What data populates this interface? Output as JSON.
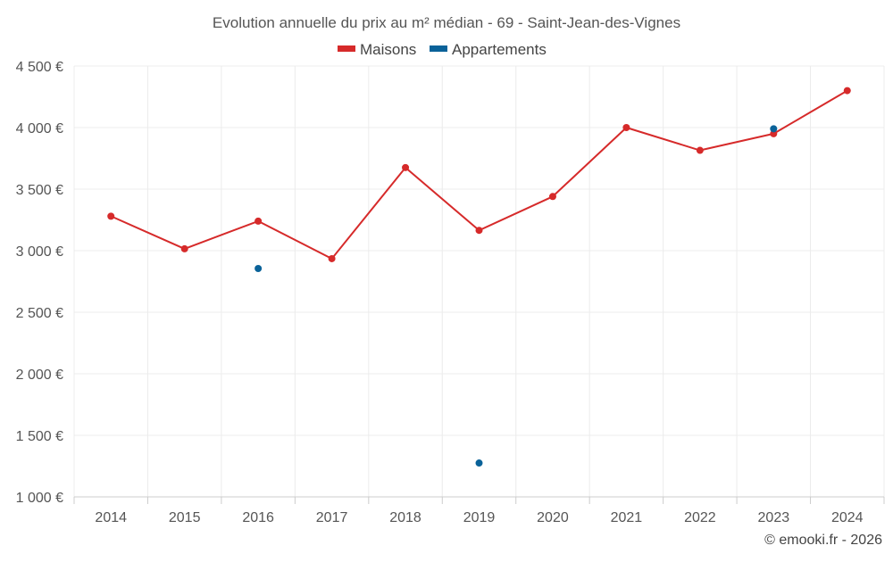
{
  "chart_data": {
    "type": "line",
    "title": "Evolution annuelle du prix au m² médian - 69 - Saint-Jean-des-Vignes",
    "categories": [
      "2014",
      "2015",
      "2016",
      "2017",
      "2018",
      "2019",
      "2020",
      "2021",
      "2022",
      "2023",
      "2024"
    ],
    "series": [
      {
        "name": "Maisons",
        "color": "#d62a2a",
        "mode": "line+markers",
        "values": [
          3280,
          3015,
          3240,
          2935,
          3675,
          3165,
          3440,
          4000,
          3815,
          3950,
          4300
        ]
      },
      {
        "name": "Appartements",
        "color": "#0a6299",
        "mode": "markers",
        "values": [
          null,
          null,
          2855,
          null,
          null,
          1275,
          null,
          null,
          null,
          3990,
          null
        ]
      }
    ],
    "ylim": [
      1000,
      4500
    ],
    "yticks": [
      1000,
      1500,
      2000,
      2500,
      3000,
      3500,
      4000,
      4500
    ],
    "ytick_labels": [
      "1 000 €",
      "1 500 €",
      "2 000 €",
      "2 500 €",
      "3 000 €",
      "3 500 €",
      "4 000 €",
      "4 500 €"
    ],
    "xlabel": "",
    "ylabel": "",
    "grid": true,
    "legend_position": "top-center",
    "credits": "© emooki.fr - 2026"
  }
}
